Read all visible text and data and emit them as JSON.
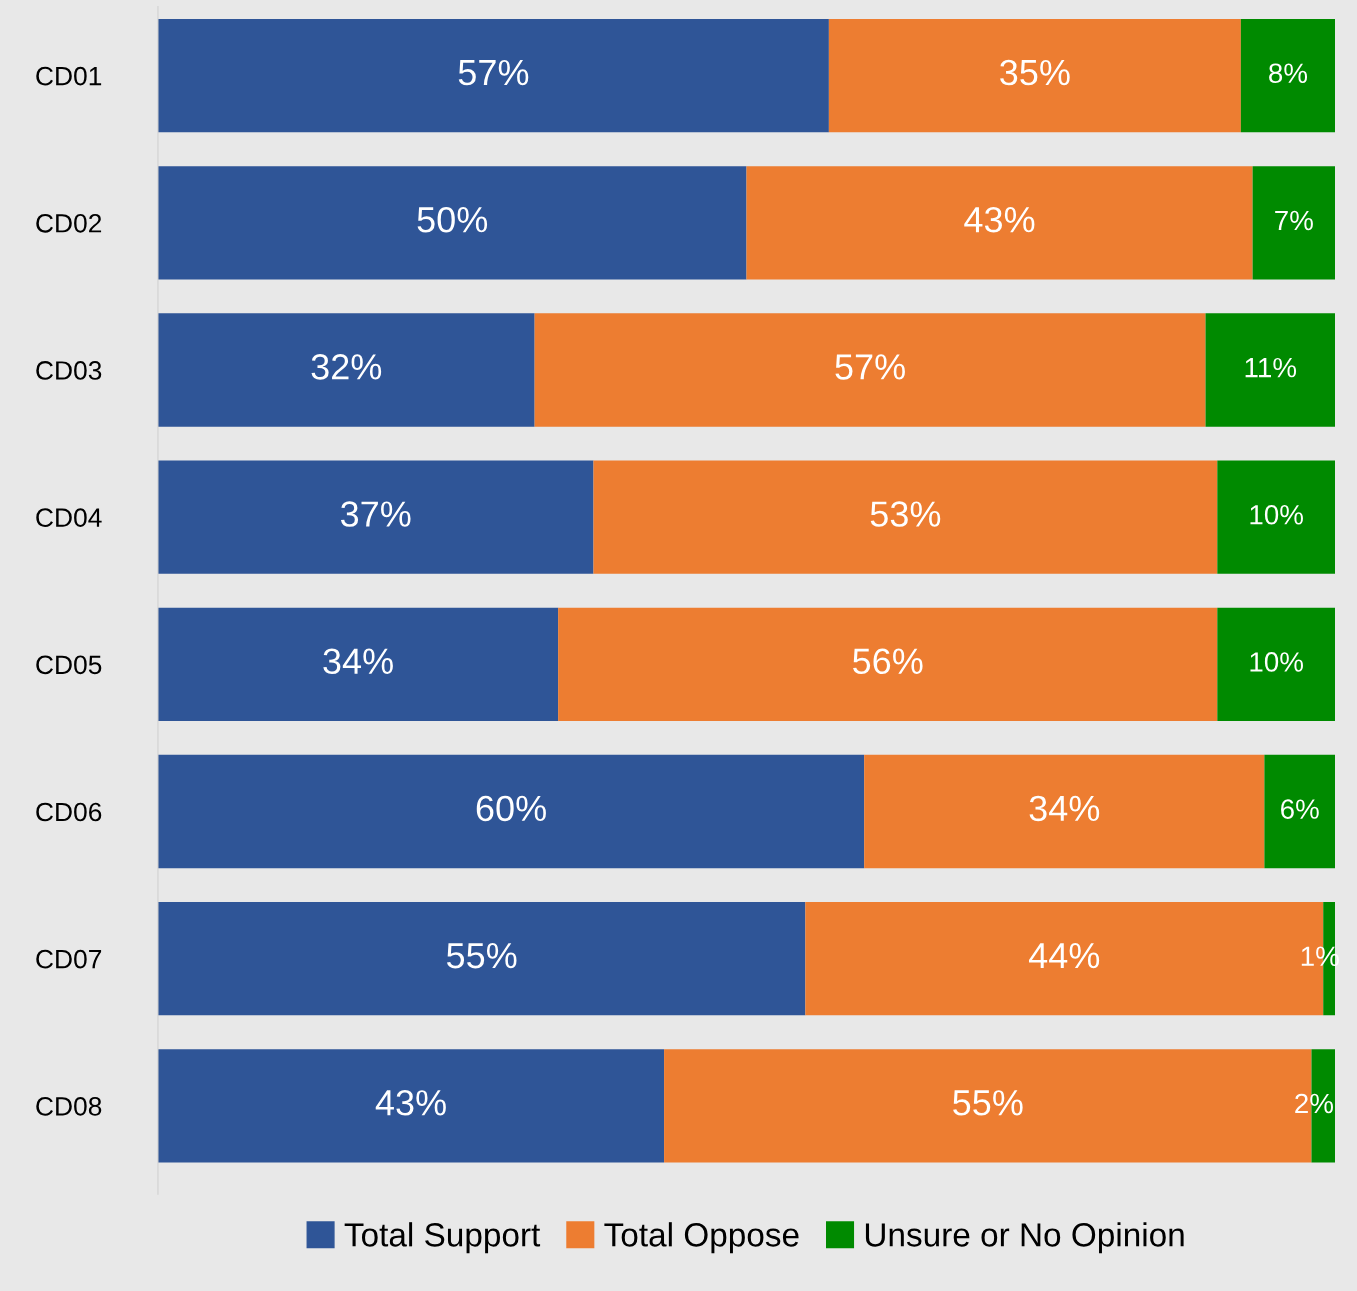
{
  "chart_data": {
    "type": "bar",
    "orientation": "horizontal",
    "stacked": true,
    "categories": [
      "CD01",
      "CD02",
      "CD03",
      "CD04",
      "CD05",
      "CD06",
      "CD07",
      "CD08"
    ],
    "series": [
      {
        "name": "Total Support",
        "color": "#2f5597",
        "values": [
          57,
          50,
          32,
          37,
          34,
          60,
          55,
          43
        ],
        "value_labels": [
          "57%",
          "50%",
          "32%",
          "37%",
          "34%",
          "60%",
          "55%",
          "43%"
        ]
      },
      {
        "name": "Total Oppose",
        "color": "#ed7d31",
        "values": [
          35,
          43,
          57,
          53,
          56,
          34,
          44,
          55
        ],
        "value_labels": [
          "35%",
          "43%",
          "57%",
          "53%",
          "56%",
          "34%",
          "44%",
          "55%"
        ]
      },
      {
        "name": "Unsure or No Opinion",
        "color": "#008a00",
        "values": [
          8,
          7,
          11,
          10,
          10,
          6,
          1,
          2
        ],
        "value_labels": [
          "8%",
          "7%",
          "11%",
          "10%",
          "10%",
          "6%",
          "1%",
          "2%"
        ]
      }
    ],
    "tick_labels": "y",
    "grid": false,
    "legend": "bottom"
  }
}
